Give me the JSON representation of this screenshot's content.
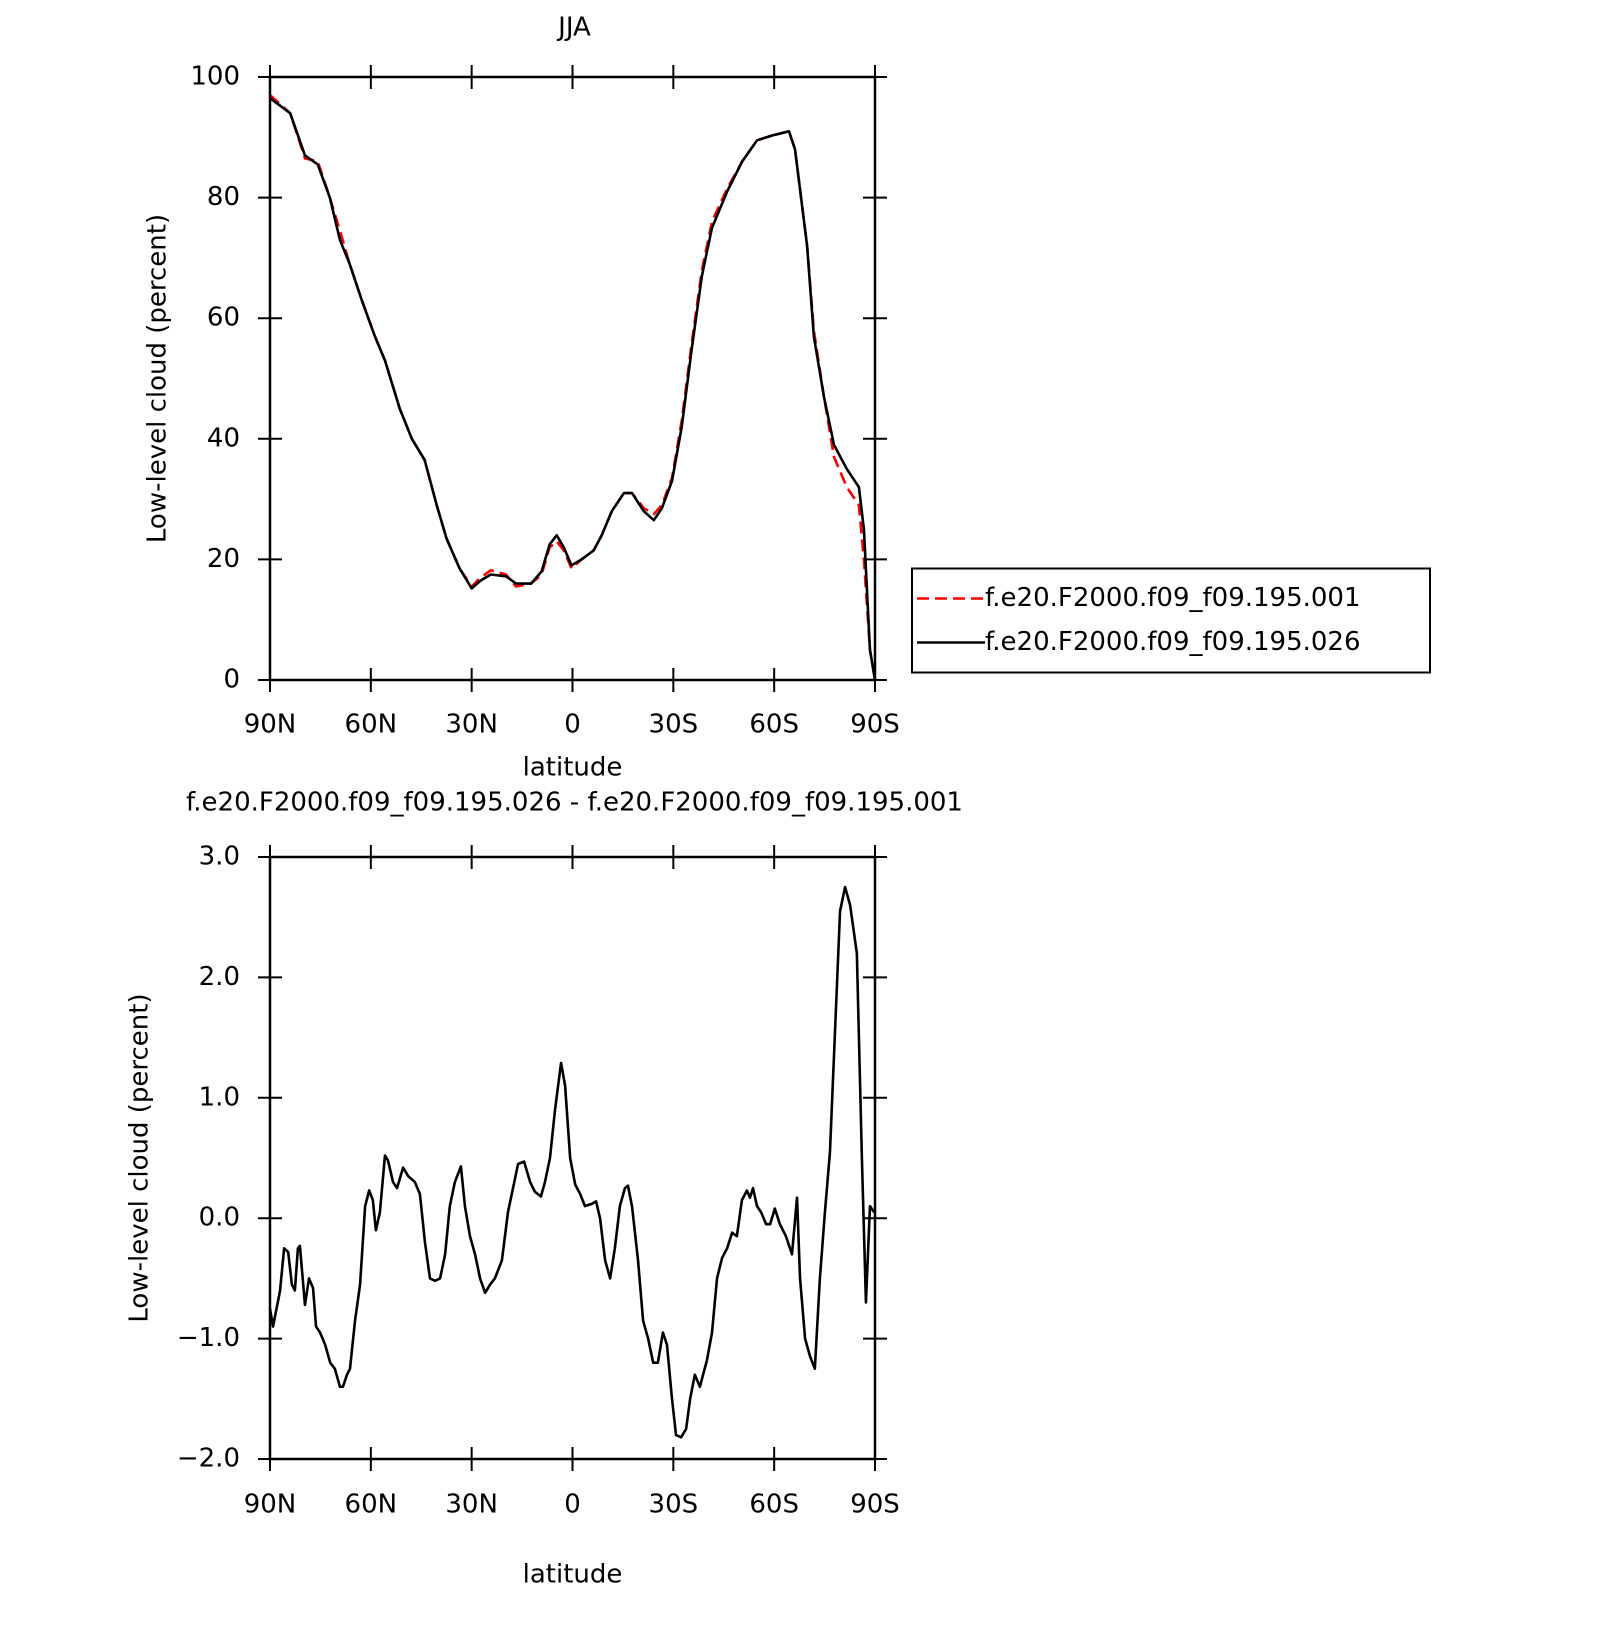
{
  "chart_data": [
    {
      "type": "line",
      "title": "JJA",
      "xlabel": "latitude",
      "ylabel": "Low-level cloud (percent)",
      "x": [
        90,
        84,
        79.6,
        75.8,
        72.2,
        69.2,
        66.3,
        62.7,
        58.8,
        55.8,
        51.4,
        47.8,
        44,
        40.4,
        37.5,
        33.6,
        30,
        27.3,
        24.3,
        19.8,
        16.8,
        12.3,
        9.2,
        6.8,
        4.7,
        2.6,
        0.3,
        -2.7,
        -6.3,
        -8.7,
        -11.7,
        -15.3,
        -17.7,
        -21.2,
        -24.2,
        -26.6,
        -29.6,
        -32.5,
        -35.5,
        -38.5,
        -41.5,
        -46,
        -50.5,
        -54.9,
        -59.4,
        -64.4,
        -66.2,
        -69.8,
        -71.8,
        -74.8,
        -77.8,
        -81.6,
        -85.2,
        -86.7,
        -88.5,
        -90
      ],
      "series": [
        {
          "name": "f.e20.F2000.f09_f09.195.001",
          "color": "#ff0000",
          "line_style": "dashed",
          "values": [
            97,
            94,
            86.5,
            86,
            80,
            74.5,
            69,
            63,
            57,
            53,
            45,
            40,
            36.5,
            29,
            23.5,
            18.5,
            15.5,
            17,
            18.2,
            17.5,
            15.5,
            16,
            17.5,
            22,
            23,
            21.5,
            18.5,
            20,
            21.5,
            24,
            28,
            31,
            31,
            28.5,
            27.5,
            29,
            33.5,
            43,
            56,
            68,
            76,
            81.5,
            86,
            89.5,
            90.3,
            91,
            88,
            72,
            58,
            47,
            37,
            32,
            29,
            20,
            5,
            0
          ]
        },
        {
          "name": "f.e20.F2000.f09_f09.195.026",
          "color": "#000000",
          "line_style": "solid",
          "values": [
            96.5,
            94,
            87,
            85.5,
            80,
            73,
            69,
            63,
            57,
            53,
            45,
            40,
            36.5,
            29,
            23.5,
            18.5,
            15.2,
            16.5,
            17.5,
            17.2,
            16,
            16,
            18,
            22.5,
            24,
            22,
            19,
            20,
            21.5,
            24,
            28,
            31,
            31,
            28,
            26.5,
            28.5,
            33,
            42,
            55,
            67,
            75,
            81,
            86,
            89.5,
            90.3,
            91,
            88,
            72,
            57,
            47,
            39,
            35,
            32,
            25,
            5,
            0
          ]
        }
      ],
      "xlim": [
        90,
        -90
      ],
      "xticks": [
        {
          "value": 90,
          "label": "90N"
        },
        {
          "value": 60,
          "label": "60N"
        },
        {
          "value": 30,
          "label": "30N"
        },
        0,
        {
          "value": -30,
          "label": "30S"
        },
        {
          "value": -60,
          "label": "60S"
        },
        {
          "value": -90,
          "label": "90S"
        }
      ],
      "ylim": [
        0,
        100
      ],
      "yticks": [
        0,
        20,
        40,
        60,
        80,
        100
      ],
      "grid": false,
      "legend": "right"
    },
    {
      "type": "line",
      "title": "f.e20.F2000.f09_f09.195.026 - f.e20.F2000.f09_f09.195.001",
      "xlabel": "latitude",
      "ylabel": "Low-level cloud (percent)",
      "x": [
        90,
        89.1,
        87.0,
        85.8,
        84.6,
        83.5,
        82.6,
        81.7,
        81.1,
        79.6,
        78.4,
        77.2,
        76.3,
        75.1,
        73.6,
        72.1,
        70.7,
        69.2,
        68.3,
        67.1,
        66.2,
        64.7,
        63.2,
        61.7,
        60.5,
        59.4,
        58.5,
        57.3,
        55.8,
        54.9,
        53.4,
        52.2,
        50.4,
        48.9,
        46.9,
        45.4,
        43.9,
        42.4,
        40.9,
        39.4,
        37.9,
        36.5,
        35.0,
        33.2,
        32.0,
        30.5,
        29.0,
        27.5,
        26.0,
        24.5,
        23.1,
        21.0,
        19.2,
        17.7,
        16.2,
        14.4,
        12.6,
        11.2,
        9.4,
        8.2,
        6.7,
        5.2,
        3.4,
        2.2,
        0.7,
        -0.8,
        -2.3,
        -3.7,
        -5.8,
        -7.0,
        -8.2,
        -9.7,
        -11.2,
        -12.6,
        -14.1,
        -15.6,
        -16.5,
        -17.7,
        -19.5,
        -21.0,
        -22.5,
        -24.0,
        -25.4,
        -26.9,
        -28.1,
        -29.6,
        -30.8,
        -32.3,
        -33.8,
        -35.0,
        -36.4,
        -37.9,
        -40.0,
        -41.5,
        -43.0,
        -44.5,
        -46.0,
        -47.5,
        -48.9,
        -50.4,
        -51.9,
        -52.8,
        -53.7,
        -54.9,
        -56.1,
        -57.6,
        -58.8,
        -60.2,
        -61.7,
        -63.5,
        -65.3,
        -66.8,
        -67.7,
        -69.2,
        -70.7,
        -72.1,
        -73.6,
        -75.1,
        -76.6,
        -78.1,
        -79.6,
        -81.1,
        -82.6,
        -84.6,
        -86.1,
        -87.3,
        -88.5,
        -89.7
      ],
      "values": [
        -0.75,
        -0.9,
        -0.6,
        -0.25,
        -0.28,
        -0.55,
        -0.6,
        -0.25,
        -0.23,
        -0.72,
        -0.5,
        -0.58,
        -0.9,
        -0.95,
        -1.05,
        -1.2,
        -1.25,
        -1.4,
        -1.4,
        -1.3,
        -1.25,
        -0.85,
        -0.55,
        0.1,
        0.23,
        0.15,
        -0.1,
        0.05,
        0.52,
        0.48,
        0.3,
        0.25,
        0.42,
        0.35,
        0.3,
        0.2,
        -0.2,
        -0.5,
        -0.52,
        -0.5,
        -0.3,
        0.1,
        0.3,
        0.43,
        0.1,
        -0.15,
        -0.3,
        -0.5,
        -0.62,
        -0.55,
        -0.5,
        -0.35,
        0.05,
        0.25,
        0.45,
        0.47,
        0.3,
        0.22,
        0.18,
        0.3,
        0.5,
        0.9,
        1.29,
        1.1,
        0.5,
        0.28,
        0.2,
        0.1,
        0.12,
        0.14,
        0,
        -0.35,
        -0.5,
        -0.25,
        0.1,
        0.25,
        0.27,
        0.1,
        -0.35,
        -0.85,
        -1.0,
        -1.2,
        -1.2,
        -0.95,
        -1.05,
        -1.5,
        -1.8,
        -1.82,
        -1.75,
        -1.5,
        -1.3,
        -1.4,
        -1.18,
        -0.95,
        -0.5,
        -0.33,
        -0.25,
        -0.12,
        -0.15,
        0.15,
        0.23,
        0.17,
        0.25,
        0.1,
        0.05,
        -0.05,
        -0.05,
        0.08,
        -0.05,
        -0.15,
        -0.3,
        0.17,
        -0.5,
        -1.0,
        -1.15,
        -1.25,
        -0.5,
        0.05,
        0.55,
        1.55,
        2.55,
        2.75,
        2.6,
        2.2,
        0.5,
        -0.7,
        0.1,
        0.05
      ],
      "color": "#000000",
      "xlim": [
        90,
        -90
      ],
      "xticks": [
        {
          "value": 90,
          "label": "90N"
        },
        {
          "value": 60,
          "label": "60N"
        },
        {
          "value": 30,
          "label": "30N"
        },
        0,
        {
          "value": -30,
          "label": "30S"
        },
        {
          "value": -60,
          "label": "60S"
        },
        {
          "value": -90,
          "label": "90S"
        }
      ],
      "ylim": [
        -2,
        3
      ],
      "yticks": [
        {
          "value": -2,
          "label": "−2.0"
        },
        {
          "value": -1,
          "label": "−1.0"
        },
        {
          "value": 0,
          "label": "0.0"
        },
        {
          "value": 1,
          "label": "1.0"
        },
        {
          "value": 2,
          "label": "2.0"
        },
        {
          "value": 3,
          "label": "3.0"
        }
      ],
      "grid": false
    }
  ]
}
